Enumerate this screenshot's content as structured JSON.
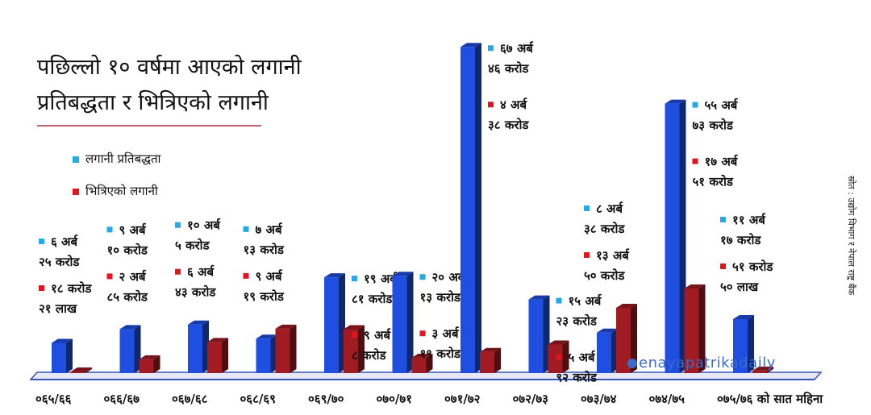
{
  "chart_data": {
    "type": "bar",
    "title_lines": [
      "पछिल्लो १० वर्षमा आएको लगानी",
      "प्रतिबद्धता र भित्रिएको लगानी"
    ],
    "categories": [
      "०६५/६६",
      "०६६/६७",
      "०६७/६८",
      "०६८/६९",
      "०६९/७०",
      "०७०/७१",
      "०७१/७२",
      "०७२/७३",
      "०७३/७४",
      "०७४/७५",
      "०७५/७६ को सात महिना"
    ],
    "unit": "अर्ब",
    "series": [
      {
        "name": "लगानी प्रतिबद्धता",
        "color": "#1f4fe0",
        "values": [
          6.25,
          9.1,
          10.05,
          7.13,
          19.81,
          20.13,
          67.46,
          15.23,
          8.38,
          55.73,
          11.17
        ],
        "labels": [
          [
            "६ अर्ब",
            "२५ करोड"
          ],
          [
            "९ अर्ब",
            "१० करोड"
          ],
          [
            "१० अर्ब",
            "५ करोड"
          ],
          [
            "७ अर्ब",
            "१३ करोड"
          ],
          [
            "१९ अर्ब",
            "८१ करोड"
          ],
          [
            "२० अर्ब",
            "१३ करोड"
          ],
          [
            "६७ अर्ब",
            "४६ करोड"
          ],
          [
            "१५ अर्ब",
            "२३ करोड"
          ],
          [
            "८ अर्ब",
            "३८ करोड"
          ],
          [
            "५५ अर्ब",
            "७३ करोड"
          ],
          [
            "११ अर्ब",
            "१७ करोड"
          ]
        ]
      },
      {
        "name": "भित्रिएको लगानी",
        "color": "#a01c22",
        "values": [
          0.18,
          2.85,
          6.43,
          9.19,
          9.08,
          3.19,
          4.38,
          5.92,
          13.5,
          17.51,
          0.52
        ],
        "labels": [
          [
            "१८ करोड",
            "२१ लाख"
          ],
          [
            "२ अर्ब",
            "८५ करोड"
          ],
          [
            "६ अर्ब",
            "४३ करोड"
          ],
          [
            "९ अर्ब",
            "१९ करोड"
          ],
          [
            "९ अर्ब",
            "८ करोड"
          ],
          [
            "३ अर्ब",
            "१९ करोड"
          ],
          [
            "४ अर्ब",
            "३८ करोड"
          ],
          [
            "५ अर्ब",
            "९२ करोड"
          ],
          [
            "१३ अर्ब",
            "५० करोड"
          ],
          [
            "१७ अर्ब",
            "५१ करोड"
          ],
          [
            "५१ करोड",
            "५० लाख"
          ]
        ]
      }
    ],
    "legend_placement": "upper-left",
    "grid": false
  },
  "source": "स्रोत : उद्योग विभाग र नेपाल राष्ट्र बैंक",
  "watermark": "enayapatrikadaily",
  "colors": {
    "blue_marker": "#25a9e8",
    "red_marker": "#e0151d",
    "floor": "#3553b8"
  }
}
